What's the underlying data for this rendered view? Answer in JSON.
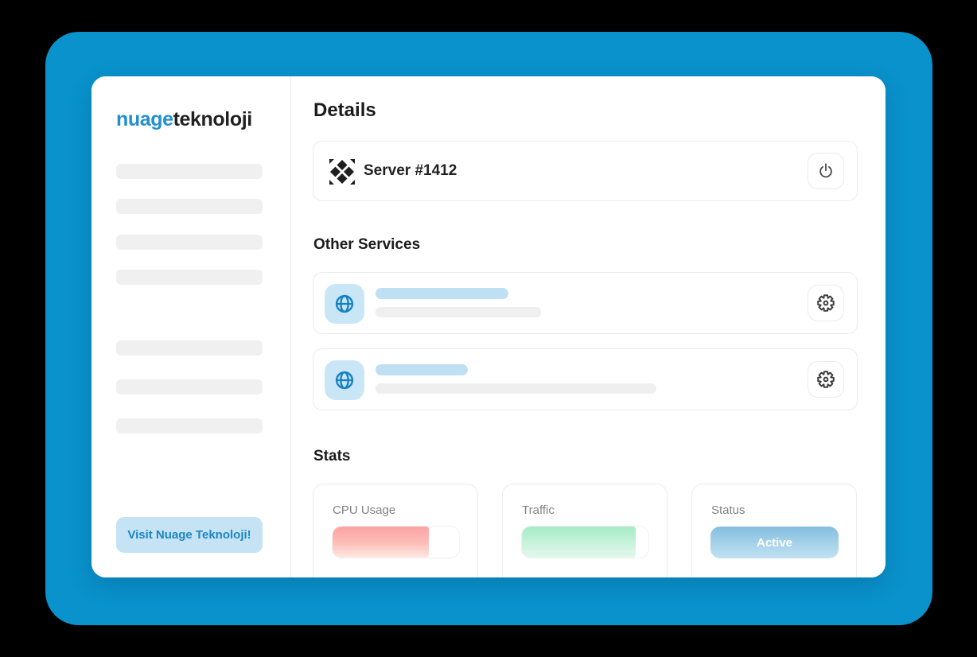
{
  "window": {
    "background_color": "#0992cc",
    "outer_background": "#000000"
  },
  "sidebar": {
    "logo_part1": "nuage",
    "logo_part2": "teknoloji",
    "logo_color": "#2290cf",
    "visit_button_label": "Visit Nuage Teknoloji!",
    "visit_button_bg": "#c5e3f4",
    "visit_button_text_color": "#1b86c1"
  },
  "details": {
    "heading": "Details",
    "server_name": "Server #1412",
    "server_icon": "diamond-pattern-icon",
    "action_icon": "power-icon"
  },
  "other_services": {
    "heading": "Other Services",
    "services": [
      {
        "icon": "globe-icon",
        "action_icon": "gear-icon"
      },
      {
        "icon": "globe-icon",
        "action_icon": "gear-icon"
      }
    ]
  },
  "stats": {
    "heading": "Stats",
    "cards": [
      {
        "label": "CPU Usage",
        "type": "progress",
        "fill_percent": 76,
        "fill_color": "#fba3a3"
      },
      {
        "label": "Traffic",
        "type": "progress",
        "fill_percent": 90,
        "fill_color": "#a3ebc5"
      },
      {
        "label": "Status",
        "type": "badge",
        "value": "Active",
        "badge_color": "#84bedf"
      }
    ]
  }
}
